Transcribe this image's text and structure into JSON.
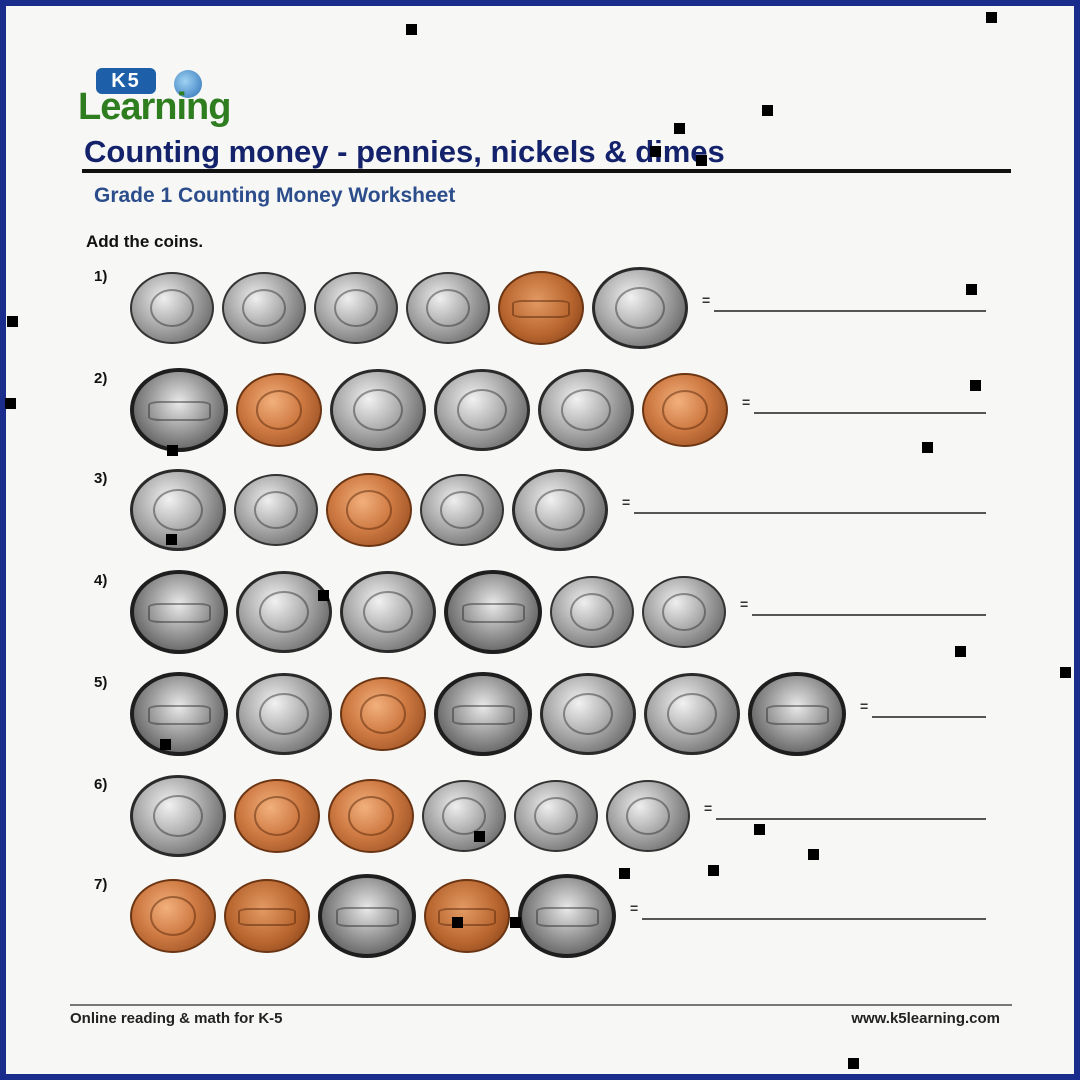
{
  "logo": {
    "top": "K5",
    "word": "Learning"
  },
  "title": "Counting money - pennies, nickels & dimes",
  "subtitle": "Grade 1 Counting Money Worksheet",
  "instructions": "Add the coins.",
  "equals_sign": "=",
  "problems": [
    {
      "number": "1)",
      "coins": [
        "dime",
        "dime",
        "dime",
        "dime",
        "penny-back",
        "nickel"
      ]
    },
    {
      "number": "2)",
      "coins": [
        "nickel-back",
        "penny",
        "nickel",
        "nickel",
        "nickel",
        "penny"
      ]
    },
    {
      "number": "3)",
      "coins": [
        "nickel",
        "dime",
        "penny",
        "dime",
        "nickel"
      ]
    },
    {
      "number": "4)",
      "coins": [
        "nickel-back",
        "nickel",
        "nickel",
        "nickel-back",
        "dime",
        "dime"
      ]
    },
    {
      "number": "5)",
      "coins": [
        "nickel-back",
        "nickel",
        "penny",
        "nickel-back",
        "nickel",
        "nickel",
        "nickel-back"
      ]
    },
    {
      "number": "6)",
      "coins": [
        "nickel",
        "penny",
        "penny",
        "dime",
        "dime",
        "dime"
      ]
    },
    {
      "number": "7)",
      "coins": [
        "penny",
        "penny-back",
        "nickel-back",
        "penny-back",
        "nickel-back"
      ]
    }
  ],
  "footer": {
    "left": "Online reading & math for K-5",
    "right": "www.k5learning.com"
  },
  "colors": {
    "title": "#13226b",
    "subtitle": "#2c4d8c",
    "logo_green": "#2e7d1e",
    "logo_blue": "#1d5fa8",
    "frame": "#1a2c8c"
  }
}
